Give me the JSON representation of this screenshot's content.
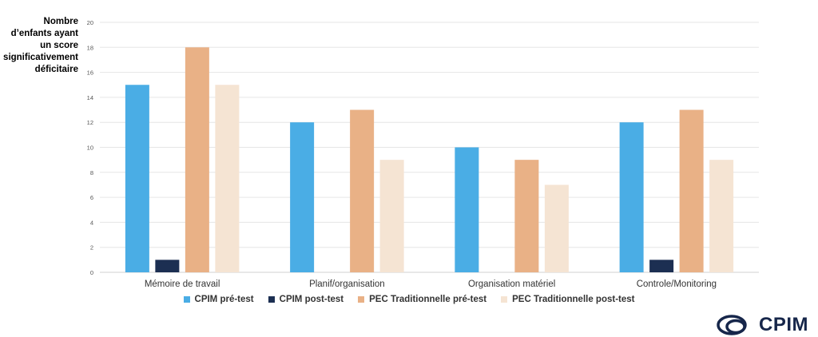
{
  "chart_data": {
    "type": "bar",
    "ylabel_lines": [
      "Nombre",
      "d’enfants ayant",
      "un score",
      "significativement",
      "déficitaire"
    ],
    "categories": [
      "Mémoire de travail",
      "Planif/organisation",
      "Organisation matériel",
      "Controle/Monitoring"
    ],
    "series": [
      {
        "name": "CPIM pré-test",
        "color": "#4aade5",
        "values": [
          15,
          12,
          10,
          12
        ]
      },
      {
        "name": "CPIM post-test",
        "color": "#1c2f52",
        "values": [
          1,
          0,
          0,
          1
        ]
      },
      {
        "name": "PEC Traditionnelle pré-test",
        "color": "#e9b186",
        "values": [
          18,
          13,
          9,
          13
        ]
      },
      {
        "name": "PEC Traditionnelle post-test",
        "color": "#f5e4d3",
        "values": [
          15,
          9,
          7,
          9
        ]
      }
    ],
    "yticks": [
      "0",
      "2",
      "4",
      "6",
      "8",
      "10",
      "12",
      "14",
      "16",
      "18",
      "20"
    ],
    "ylim": [
      0,
      20
    ],
    "grid": true,
    "legend_position": "bottom"
  },
  "logo": {
    "text": "CPIM",
    "color": "#16264a"
  }
}
